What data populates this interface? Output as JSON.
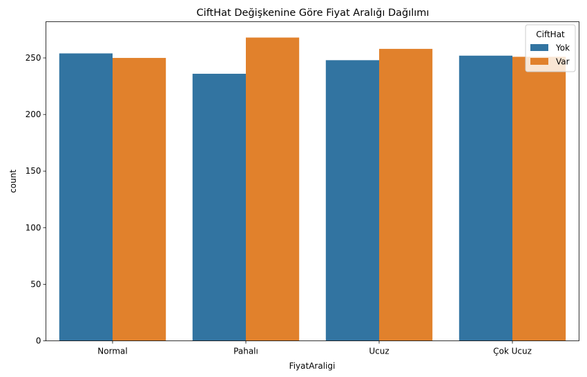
{
  "chart_data": {
    "type": "bar",
    "title": "CiftHat Değişkenine Göre Fiyat Aralığı Dağılımı",
    "xlabel": "FiyatAraligi",
    "ylabel": "count",
    "categories": [
      "Normal",
      "Pahalı",
      "Ucuz",
      "Çok Ucuz"
    ],
    "series": [
      {
        "name": "Yok",
        "color": "#3274a1",
        "values": [
          254,
          236,
          248,
          252
        ]
      },
      {
        "name": "Var",
        "color": "#e1812c",
        "values": [
          250,
          268,
          258,
          251
        ]
      }
    ],
    "ylim": [
      0,
      282
    ],
    "yticks": [
      0,
      50,
      100,
      150,
      200,
      250
    ],
    "legend": {
      "title": "CiftHat",
      "position": "top-right"
    },
    "grid": false
  }
}
